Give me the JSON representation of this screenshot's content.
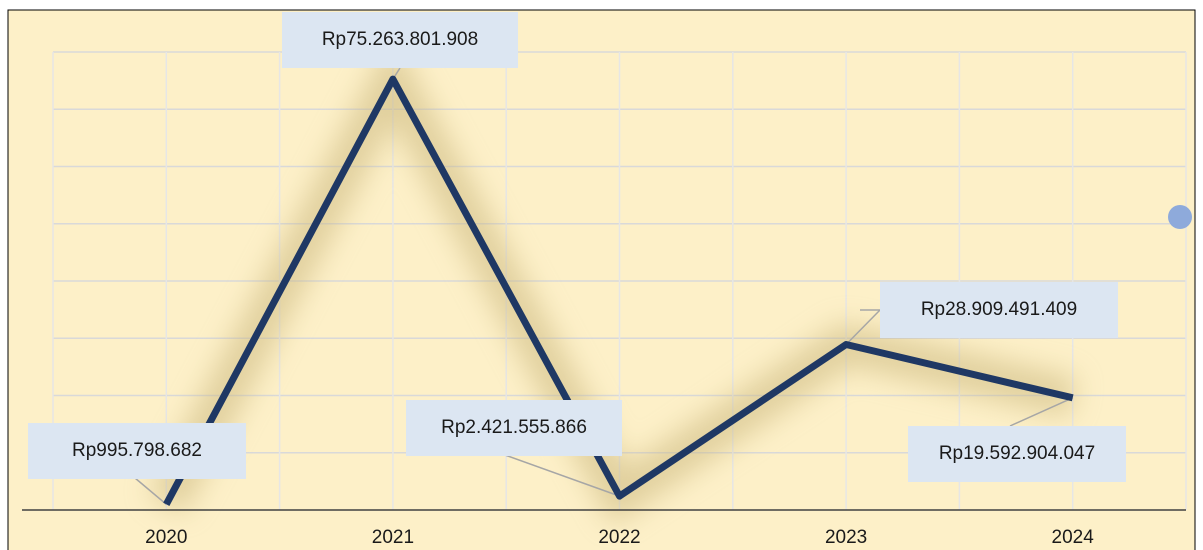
{
  "chart_data": {
    "type": "line",
    "categories": [
      "2020",
      "2021",
      "2022",
      "2023",
      "2024"
    ],
    "values": [
      995798682,
      75263801908,
      2421555866,
      28909491409,
      19592904047
    ],
    "value_labels": [
      "Rp995.798.682",
      "Rp75.263.801.908",
      "Rp2.421.555.866",
      "Rp28.909.491.409",
      "Rp19.592.904.047"
    ],
    "color": "#1f3864",
    "ylim": [
      0,
      80000000000
    ],
    "yticks": [
      0,
      10000000000,
      20000000000,
      30000000000,
      40000000000,
      50000000000,
      60000000000,
      70000000000,
      80000000000
    ],
    "grid": true
  }
}
